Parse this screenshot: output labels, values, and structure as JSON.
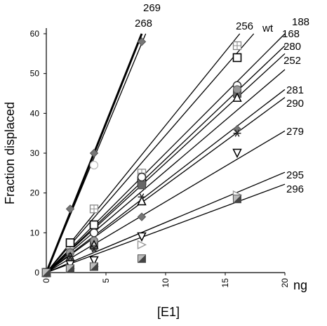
{
  "chart_data": {
    "type": "scatter",
    "title": "",
    "xlabel": "[E1]",
    "x_unit": "ng",
    "ylabel": "Fraction displaced",
    "xlim": [
      0,
      20
    ],
    "ylim": [
      0,
      60
    ],
    "xticks": [
      0,
      5,
      10,
      15,
      20
    ],
    "yticks": [
      0,
      10,
      20,
      30,
      40,
      50,
      60
    ],
    "grid": false,
    "series": [
      {
        "name": "269",
        "marker": "diamond-gray",
        "x": [
          0,
          2,
          4,
          8
        ],
        "y": [
          0,
          16,
          30,
          58
        ],
        "fit_slope": 7.5
      },
      {
        "name": "268",
        "marker": "circle-light",
        "x": [
          0,
          4
        ],
        "y": [
          0,
          27
        ],
        "fit_slope": 7.2
      },
      {
        "name": "256",
        "marker": "square-grid",
        "x": [
          0,
          2,
          4,
          8,
          16
        ],
        "y": [
          0,
          7,
          16,
          25,
          57
        ],
        "fit_slope": 3.7
      },
      {
        "name": "wt",
        "marker": "square-open",
        "x": [
          0,
          2,
          4,
          8,
          16
        ],
        "y": [
          0,
          7.5,
          12,
          23,
          54
        ],
        "fit_slope": 3.45
      },
      {
        "name": "188",
        "marker": "circle-open",
        "x": [
          0,
          4,
          8,
          16
        ],
        "y": [
          0,
          10,
          24,
          47
        ],
        "fit_slope": 3.0
      },
      {
        "name": "168",
        "marker": "square-filled",
        "x": [
          0,
          4,
          8,
          16
        ],
        "y": [
          0,
          7,
          22,
          45
        ],
        "fit_slope": 2.85
      },
      {
        "name": "280",
        "marker": "circle-gray",
        "x": [
          0,
          2,
          4,
          16
        ],
        "y": [
          0,
          5,
          8,
          46
        ],
        "fit_slope": 2.75
      },
      {
        "name": "252",
        "marker": "triangle-up-open",
        "x": [
          0,
          2,
          4,
          8,
          16
        ],
        "y": [
          0,
          4,
          7,
          18,
          44
        ],
        "fit_slope": 2.55
      },
      {
        "name": "281",
        "marker": "diamond-gray",
        "x": [
          0,
          2,
          4,
          8,
          16
        ],
        "y": [
          0,
          3,
          6,
          14,
          36
        ],
        "fit_slope": 2.3
      },
      {
        "name": "290",
        "marker": "asterisk",
        "x": [
          0,
          2,
          4,
          8,
          16
        ],
        "y": [
          0,
          4,
          6,
          19,
          35
        ],
        "fit_slope": 2.2
      },
      {
        "name": "279",
        "marker": "triangle-down-open",
        "x": [
          0,
          2,
          4,
          8,
          16
        ],
        "y": [
          0,
          2,
          3,
          9,
          30
        ],
        "fit_slope": 1.78
      },
      {
        "name": "295",
        "marker": "triangle-right-open",
        "x": [
          0,
          2,
          4,
          8,
          16
        ],
        "y": [
          0,
          1,
          1.5,
          7,
          19.5
        ],
        "fit_slope": 1.26
      },
      {
        "name": "296",
        "marker": "square-half",
        "x": [
          0,
          2,
          4,
          8,
          16
        ],
        "y": [
          0,
          1,
          1.5,
          3.5,
          18.5
        ],
        "fit_slope": 1.11
      }
    ]
  }
}
